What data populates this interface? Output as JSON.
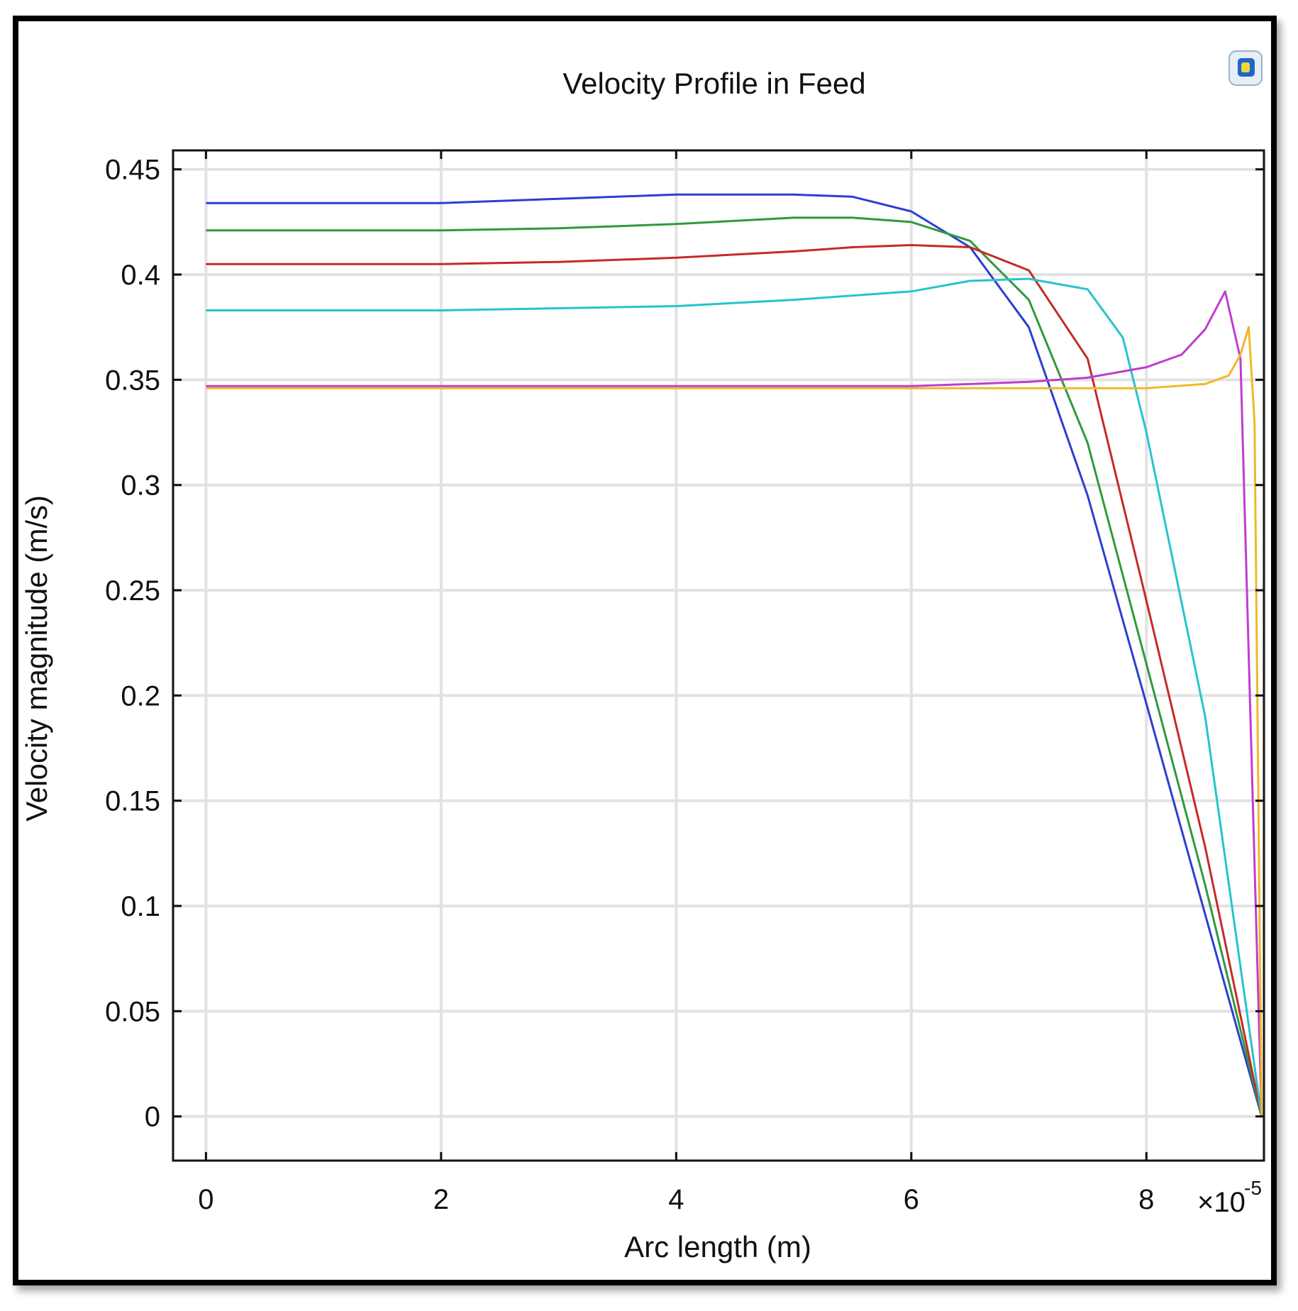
{
  "chart_data": {
    "type": "line",
    "title": "Velocity Profile in Feed",
    "xlabel": "Arc length (m)",
    "ylabel": "Velocity magnitude (m/s)",
    "x_multiplier_label": "×10",
    "x_multiplier_exponent": "-5",
    "xlim": [
      -0.28,
      9.0
    ],
    "ylim": [
      -0.021,
      0.459
    ],
    "xticks": [
      0,
      2,
      4,
      6,
      8
    ],
    "xtick_labels": [
      "0",
      "2",
      "4",
      "6",
      "8"
    ],
    "yticks": [
      0,
      0.05,
      0.1,
      0.15,
      0.2,
      0.25,
      0.3,
      0.35,
      0.4,
      0.45
    ],
    "ytick_labels": [
      "0",
      "0.05",
      "0.1",
      "0.15",
      "0.2",
      "0.25",
      "0.3",
      "0.35",
      "0.4",
      "0.45"
    ],
    "grid": true,
    "series": [
      {
        "name": "blue",
        "color": "#2b3fcf",
        "x": [
          0,
          1,
          2,
          3,
          4,
          5,
          5.5,
          6,
          6.5,
          7,
          7.5,
          8,
          8.5,
          8.98
        ],
        "y": [
          0.434,
          0.434,
          0.434,
          0.436,
          0.438,
          0.438,
          0.437,
          0.43,
          0.413,
          0.375,
          0.295,
          0.196,
          0.096,
          0.0
        ]
      },
      {
        "name": "green",
        "color": "#2f9a3c",
        "x": [
          0,
          1,
          2,
          3,
          4,
          5,
          5.5,
          6,
          6.5,
          7,
          7.5,
          8,
          8.5,
          8.98
        ],
        "y": [
          0.421,
          0.421,
          0.421,
          0.422,
          0.424,
          0.427,
          0.427,
          0.425,
          0.416,
          0.388,
          0.32,
          0.215,
          0.11,
          0.0
        ]
      },
      {
        "name": "red",
        "color": "#c42a2a",
        "x": [
          0,
          1,
          2,
          3,
          4,
          5,
          5.5,
          6,
          6.5,
          7,
          7.5,
          8,
          8.5,
          8.98
        ],
        "y": [
          0.405,
          0.405,
          0.405,
          0.406,
          0.408,
          0.411,
          0.413,
          0.414,
          0.413,
          0.402,
          0.36,
          0.245,
          0.128,
          0.0
        ]
      },
      {
        "name": "cyan",
        "color": "#26c4cc",
        "x": [
          0,
          1,
          2,
          3,
          4,
          5,
          6,
          6.5,
          7,
          7.5,
          7.8,
          8,
          8.5,
          8.98
        ],
        "y": [
          0.383,
          0.383,
          0.383,
          0.384,
          0.385,
          0.388,
          0.392,
          0.397,
          0.398,
          0.393,
          0.37,
          0.325,
          0.19,
          0.0
        ]
      },
      {
        "name": "magenta",
        "color": "#c03cd0",
        "x": [
          0,
          2,
          4,
          6,
          7,
          7.5,
          8,
          8.3,
          8.5,
          8.67,
          8.8,
          8.9,
          8.98
        ],
        "y": [
          0.347,
          0.347,
          0.347,
          0.347,
          0.349,
          0.351,
          0.356,
          0.362,
          0.374,
          0.392,
          0.36,
          0.16,
          0.0
        ]
      },
      {
        "name": "yellow",
        "color": "#f0b82a",
        "x": [
          0,
          2,
          4,
          6,
          8,
          8.5,
          8.7,
          8.8,
          8.87,
          8.92,
          8.98
        ],
        "y": [
          0.346,
          0.346,
          0.346,
          0.346,
          0.346,
          0.348,
          0.352,
          0.362,
          0.375,
          0.33,
          0.0
        ]
      }
    ]
  }
}
